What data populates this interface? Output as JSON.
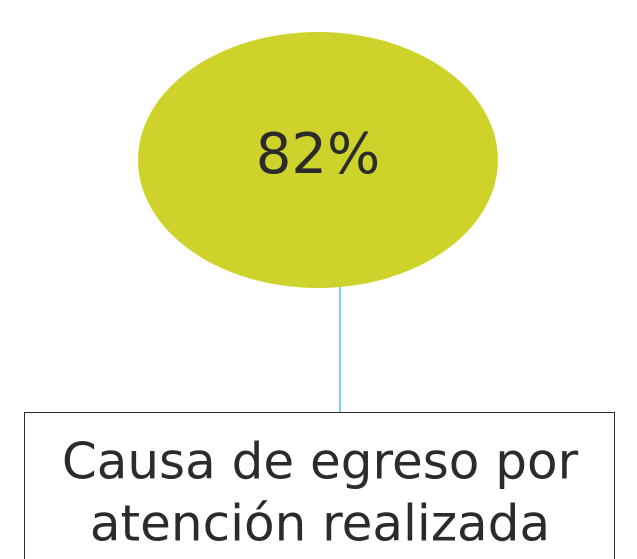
{
  "nodes": [
    {
      "label": "82%"
    },
    {
      "label_lines": [
        "Causa de egreso por",
        "atención realizada"
      ]
    }
  ]
}
